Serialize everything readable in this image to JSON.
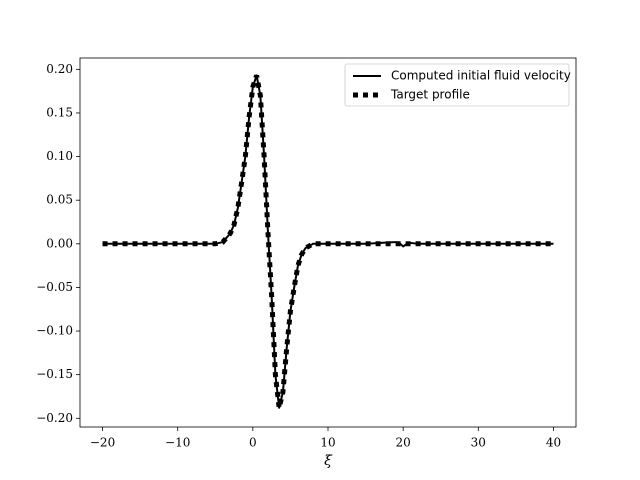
{
  "chart_data": {
    "type": "line",
    "xlabel": "ξ",
    "x": [
      -20,
      -15,
      -10,
      -5,
      -4,
      -3,
      -2.5,
      -2,
      -1.5,
      -1,
      -0.5,
      0,
      0.5,
      1,
      1.5,
      2,
      2.5,
      3,
      3.5,
      4,
      4.5,
      5,
      5.5,
      6,
      6.5,
      7,
      8,
      10,
      15,
      19,
      19.5,
      20,
      20.5,
      21,
      22,
      25,
      30,
      35,
      40
    ],
    "series": [
      {
        "name": "Computed initial fluid velocity",
        "color": "#000000",
        "style": "solid",
        "values": [
          0,
          0,
          0,
          0,
          0.002,
          0.012,
          0.022,
          0.041,
          0.07,
          0.1,
          0.145,
          0.18,
          0.193,
          0.17,
          0.1,
          0.015,
          -0.06,
          -0.15,
          -0.188,
          -0.17,
          -0.12,
          -0.077,
          -0.05,
          -0.025,
          -0.012,
          -0.005,
          0,
          0,
          0,
          0.002,
          0.001,
          -0.003,
          0,
          0.001,
          0,
          0,
          0,
          0,
          0
        ]
      },
      {
        "name": "Target profile",
        "color": "#000000",
        "style": "dotted",
        "values": [
          0,
          0,
          0,
          0,
          0.002,
          0.012,
          0.022,
          0.041,
          0.07,
          0.1,
          0.145,
          0.18,
          0.193,
          0.17,
          0.1,
          0.015,
          -0.06,
          -0.15,
          -0.188,
          -0.17,
          -0.12,
          -0.077,
          -0.05,
          -0.025,
          -0.012,
          -0.005,
          0,
          0,
          0,
          0,
          0,
          0,
          0,
          0,
          0,
          0,
          0,
          0,
          0
        ]
      }
    ],
    "xlim": [
      -23,
      43
    ],
    "ylim": [
      -0.21,
      0.213
    ],
    "xticks": [
      {
        "value": -20,
        "label": "−20"
      },
      {
        "value": -10,
        "label": "−10"
      },
      0,
      10,
      20,
      30,
      40
    ],
    "yticks": [
      {
        "value": -0.2,
        "label": "−0.20"
      },
      {
        "value": -0.15,
        "label": "−0.15"
      },
      {
        "value": -0.1,
        "label": "−0.10"
      },
      {
        "value": -0.05,
        "label": "−0.05"
      },
      {
        "value": 0,
        "label": "0.00"
      },
      {
        "value": 0.05,
        "label": "0.05"
      },
      {
        "value": 0.1,
        "label": "0.10"
      },
      {
        "value": 0.15,
        "label": "0.15"
      },
      {
        "value": 0.2,
        "label": "0.20"
      }
    ],
    "legend": "upper right",
    "grid": false
  }
}
